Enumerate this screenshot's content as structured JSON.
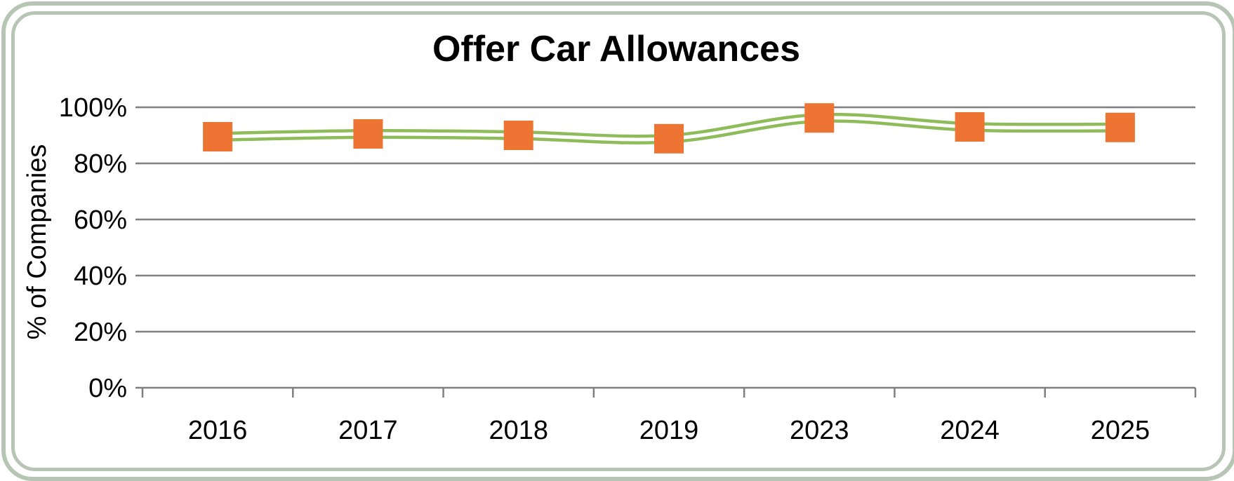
{
  "chart_data": {
    "type": "line",
    "title": "Offer Car Allowances",
    "xlabel": "",
    "ylabel": "% of Companies",
    "categories": [
      "2016",
      "2017",
      "2018",
      "2019",
      "2023",
      "2024",
      "2025"
    ],
    "series": [
      {
        "values": [
          0.895,
          0.905,
          0.9,
          0.888,
          0.962,
          0.93,
          0.928
        ]
      }
    ],
    "ylim": [
      0,
      1
    ],
    "yticks": [
      {
        "value": 0,
        "label": "0%"
      },
      {
        "value": 0.2,
        "label": "20%"
      },
      {
        "value": 0.4,
        "label": "40%"
      },
      {
        "value": 0.6,
        "label": "60%"
      },
      {
        "value": 0.8,
        "label": "80%"
      },
      {
        "value": 1.0,
        "label": "100%"
      }
    ],
    "grid": true,
    "legend": "none",
    "colors": {
      "line": "#8fbc5a",
      "marker": "#ed7432",
      "grid": "#7f7f7f",
      "frame": "#b7c5b5"
    }
  }
}
